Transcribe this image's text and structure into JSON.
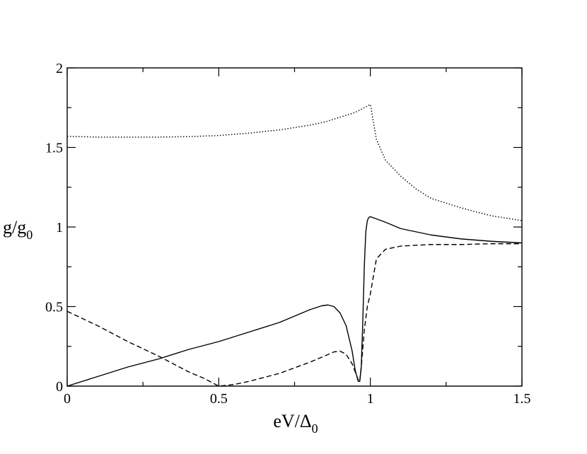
{
  "chart_data": {
    "type": "line",
    "xlabel": "eV/Δ",
    "xlabel_sub": "0",
    "ylabel": "g/g",
    "ylabel_sub": "0",
    "xlim": [
      0,
      1.5
    ],
    "ylim": [
      0,
      2
    ],
    "xticks": [
      0,
      0.5,
      1,
      1.5
    ],
    "xtick_labels": [
      "0",
      "0.5",
      "1",
      "1.5"
    ],
    "yticks": [
      0,
      0.5,
      1,
      1.5,
      2
    ],
    "ytick_labels": [
      "0",
      "0.5",
      "1",
      "1.5",
      "2"
    ],
    "grid": false,
    "series": [
      {
        "style": "solid",
        "x": [
          0,
          0.1,
          0.2,
          0.3,
          0.4,
          0.5,
          0.6,
          0.7,
          0.75,
          0.8,
          0.84,
          0.86,
          0.88,
          0.9,
          0.92,
          0.94,
          0.95,
          0.96,
          0.965,
          0.97,
          0.975,
          0.98,
          0.985,
          0.99,
          0.995,
          1.0,
          1.05,
          1.1,
          1.2,
          1.3,
          1.4,
          1.5
        ],
        "y": [
          0,
          0.06,
          0.12,
          0.17,
          0.23,
          0.28,
          0.34,
          0.4,
          0.44,
          0.48,
          0.505,
          0.51,
          0.5,
          0.46,
          0.38,
          0.22,
          0.1,
          0.03,
          0.03,
          0.12,
          0.4,
          0.75,
          0.97,
          1.04,
          1.06,
          1.065,
          1.03,
          0.99,
          0.95,
          0.925,
          0.91,
          0.9
        ]
      },
      {
        "style": "dashed",
        "x": [
          0,
          0.1,
          0.2,
          0.3,
          0.4,
          0.45,
          0.5,
          0.55,
          0.6,
          0.7,
          0.8,
          0.85,
          0.88,
          0.9,
          0.92,
          0.94,
          0.95,
          0.96,
          0.965,
          0.97,
          0.98,
          0.99,
          1.0,
          1.02,
          1.05,
          1.1,
          1.2,
          1.3,
          1.4,
          1.5
        ],
        "y": [
          0.47,
          0.38,
          0.28,
          0.19,
          0.09,
          0.05,
          0.0,
          0.01,
          0.03,
          0.08,
          0.15,
          0.19,
          0.215,
          0.22,
          0.2,
          0.14,
          0.09,
          0.04,
          0.03,
          0.12,
          0.35,
          0.5,
          0.58,
          0.8,
          0.86,
          0.88,
          0.89,
          0.89,
          0.895,
          0.895
        ]
      },
      {
        "style": "dotted",
        "x": [
          0,
          0.1,
          0.2,
          0.3,
          0.4,
          0.5,
          0.6,
          0.7,
          0.8,
          0.85,
          0.9,
          0.95,
          0.98,
          1.0,
          1.02,
          1.05,
          1.1,
          1.15,
          1.2,
          1.3,
          1.4,
          1.5
        ],
        "y": [
          1.57,
          1.565,
          1.565,
          1.565,
          1.568,
          1.575,
          1.59,
          1.61,
          1.64,
          1.66,
          1.69,
          1.72,
          1.75,
          1.77,
          1.55,
          1.42,
          1.32,
          1.24,
          1.18,
          1.12,
          1.07,
          1.04
        ]
      }
    ]
  }
}
